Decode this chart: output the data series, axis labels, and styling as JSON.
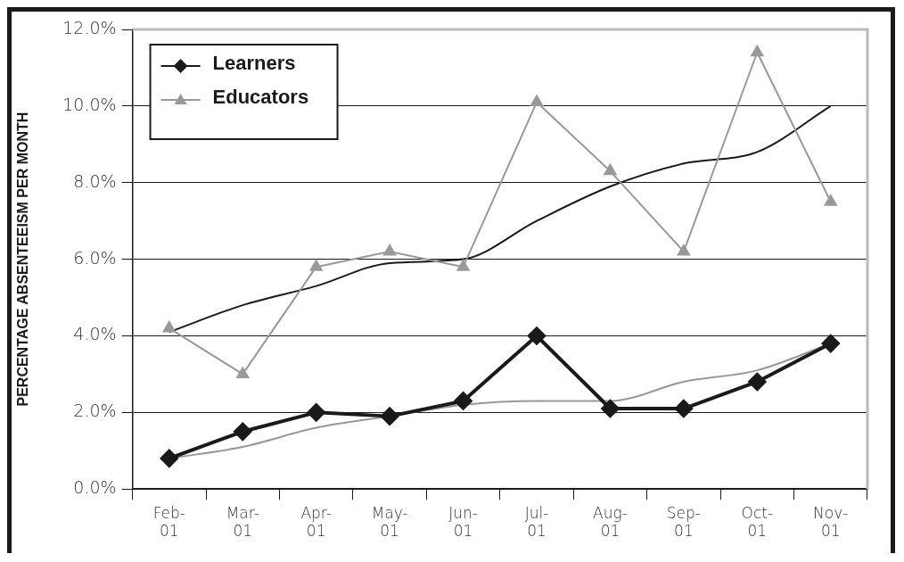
{
  "chart_data": {
    "type": "line",
    "ylabel": "PERCENTAGE ABSENTEEISM PER MONTH",
    "categories": [
      "Feb-01",
      "Mar-01",
      "Apr-01",
      "May-01",
      "Jun-01",
      "Jul-01",
      "Aug-01",
      "Sep-01",
      "Oct-01",
      "Nov-01"
    ],
    "series": [
      {
        "name": "Learners",
        "color": "#1a1a1a",
        "marker": "diamond",
        "values": [
          0.8,
          1.5,
          2.0,
          1.9,
          2.3,
          4.0,
          2.1,
          2.1,
          2.8,
          3.8
        ]
      },
      {
        "name": "Educators",
        "color": "#999999",
        "marker": "triangle",
        "values": [
          4.2,
          3.0,
          5.8,
          6.2,
          5.8,
          10.1,
          8.3,
          6.2,
          11.4,
          7.5
        ]
      },
      {
        "type": "line",
        "color": "#1a1a1a",
        "marker": "none",
        "values": [
          4.1,
          4.8,
          5.3,
          5.9,
          6.0,
          7.0,
          7.9,
          8.5,
          8.8,
          10.0
        ]
      },
      {
        "type": "line",
        "color": "#999999",
        "marker": "none",
        "values": [
          0.8,
          1.1,
          1.6,
          1.9,
          2.2,
          2.3,
          2.3,
          2.8,
          3.1,
          3.8
        ]
      }
    ],
    "ylim": [
      0,
      12
    ],
    "yticks": [
      {
        "value": 0,
        "label": "0.0%"
      },
      {
        "value": 2,
        "label": "2.0%"
      },
      {
        "value": 4,
        "label": "4.0%"
      },
      {
        "value": 6,
        "label": "6.0%"
      },
      {
        "value": 8,
        "label": "8.0%"
      },
      {
        "value": 10,
        "label": "10.0%"
      },
      {
        "value": 12,
        "label": "12.0%"
      }
    ],
    "grid": "y",
    "legend": "top left"
  }
}
